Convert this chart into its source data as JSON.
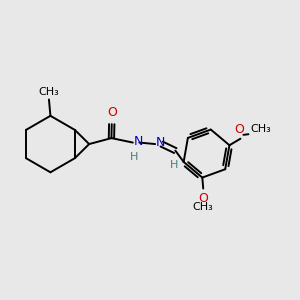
{
  "bg_color": "#e8e8e8",
  "bond_color": "#000000",
  "N_color": "#0000cc",
  "O_color": "#cc0000",
  "H_color": "#408080",
  "line_width": 1.4,
  "font_size": 9,
  "xlim": [
    0.0,
    1.0
  ],
  "ylim": [
    0.15,
    0.85
  ]
}
